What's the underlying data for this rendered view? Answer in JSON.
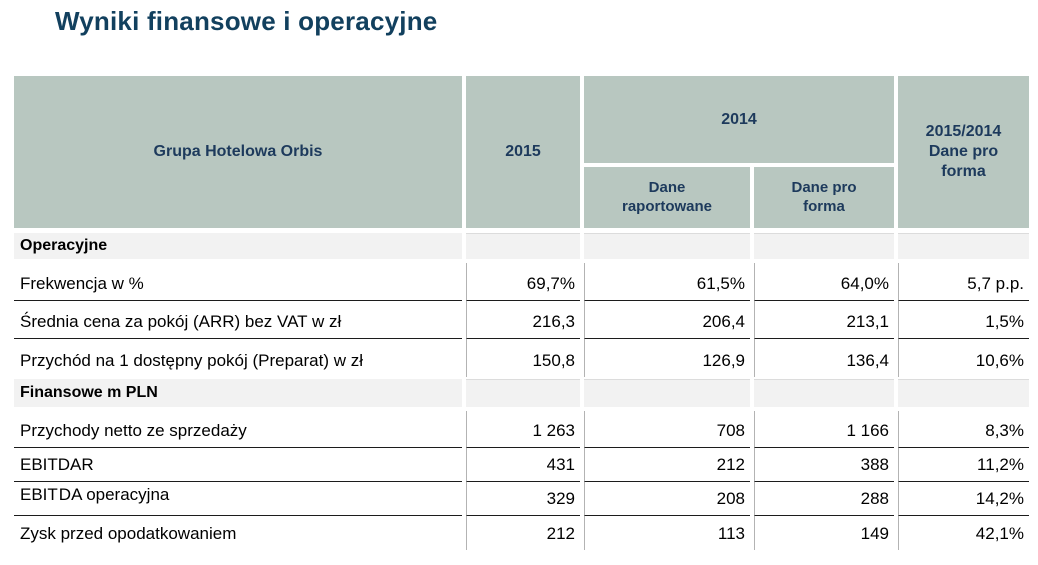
{
  "title": "Wyniki finansowe i operacyjne",
  "colors": {
    "title_text": "#12405e",
    "header_bg": "#b8c7c0",
    "header_text": "#1d3a5c",
    "section_bg": "#f2f2f2"
  },
  "table": {
    "corner_header": "Grupa Hotelowa Orbis",
    "col_2015": "2015",
    "col_2014": "2014",
    "col_2014_reported": "Dane\nraportowane",
    "col_2014_proforma": "Dane pro\nforma",
    "col_ratio": "2015/2014\nDane pro\nforma",
    "rows": [
      {
        "type": "section",
        "label": "Operacyjne"
      },
      {
        "type": "data",
        "label": "Frekwencja w %",
        "values": [
          "69,7%",
          "61,5%",
          "64,0%",
          "5,7 p.p."
        ]
      },
      {
        "type": "data",
        "label": "Średnia cena za pokój (ARR) bez VAT w zł",
        "values": [
          "216,3",
          "206,4",
          "213,1",
          "1,5%"
        ]
      },
      {
        "type": "data",
        "label": "Przychód na 1 dostępny pokój (Preparat) w zł",
        "values": [
          "150,8",
          "126,9",
          "136,4",
          "10,6%"
        ]
      },
      {
        "type": "section",
        "label": "Finansowe m PLN"
      },
      {
        "type": "data",
        "label": "Przychody netto ze sprzedaży",
        "values": [
          "1 263",
          "708",
          "1 166",
          "8,3%"
        ]
      },
      {
        "type": "data",
        "label": "EBITDAR",
        "values": [
          "431",
          "212",
          "388",
          "11,2%"
        ]
      },
      {
        "type": "data",
        "label_parts": [
          "EBIT",
          "DA operacyjna"
        ],
        "values": [
          "329",
          "208",
          "288",
          "14,2%"
        ]
      },
      {
        "type": "data",
        "label": "Zysk przed opodatkowaniem",
        "values": [
          "212",
          "113",
          "149",
          "42,1%"
        ]
      }
    ]
  }
}
